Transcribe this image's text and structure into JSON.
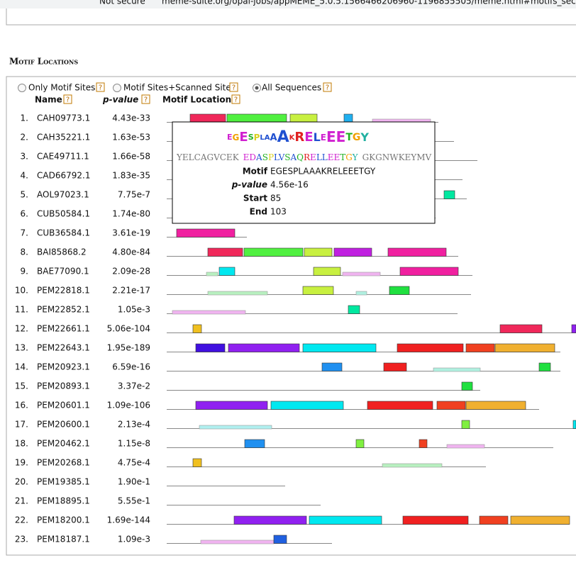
{
  "browser": {
    "security": "Not secure",
    "url": "meme-suite.org/opal-jobs/appMEME_5.0.5.1566466206960-1196855505/meme.html#motifs_sec"
  },
  "section": {
    "title": "Motif Locations",
    "options": [
      "Only Motif Sites",
      "Motif Sites+Scanned Sites",
      "All Sequences"
    ],
    "help": "?",
    "columns": {
      "name": "Name",
      "pvalue": "p-value",
      "location": "Motif Location"
    },
    "rows": [
      [
        "1.",
        "CAH09773.1",
        "4.43e-33"
      ],
      [
        "2.",
        "CAH35221.1",
        "1.63e-53"
      ],
      [
        "3.",
        "CAE49711.1",
        "1.66e-58"
      ],
      [
        "4.",
        "CAD66792.1",
        "1.83e-35"
      ],
      [
        "5.",
        "AOL97023.1",
        "7.75e-7"
      ],
      [
        "6.",
        "CUB50584.1",
        "1.74e-80"
      ],
      [
        "7.",
        "CUB36584.1",
        "3.61e-19"
      ],
      [
        "8.",
        "BAI85868.2",
        "4.80e-84"
      ],
      [
        "9.",
        "BAE77090.1",
        "2.09e-28"
      ],
      [
        "10.",
        "PEM22818.1",
        "2.21e-17"
      ],
      [
        "11.",
        "PEM22852.1",
        "1.05e-3"
      ],
      [
        "12.",
        "PEM22661.1",
        "5.06e-104"
      ],
      [
        "13.",
        "PEM22643.1",
        "1.95e-189"
      ],
      [
        "14.",
        "PEM20923.1",
        "6.59e-16"
      ],
      [
        "15.",
        "PEM20893.1",
        "3.37e-2"
      ],
      [
        "16.",
        "PEM20601.1",
        "1.09e-106"
      ],
      [
        "17.",
        "PEM20600.1",
        "2.13e-4"
      ],
      [
        "18.",
        "PEM20462.1",
        "1.15e-8"
      ],
      [
        "19.",
        "PEM20268.1",
        "4.75e-4"
      ],
      [
        "20.",
        "PEM19385.1",
        "1.90e-1"
      ],
      [
        "21.",
        "PEM18895.1",
        "5.55e-1"
      ],
      [
        "22.",
        "PEM18200.1",
        "1.69e-144"
      ],
      [
        "23.",
        "PEM18187.1",
        "1.09e-3"
      ]
    ]
  },
  "tooltip": {
    "seq_before": "YELCAGVCEK",
    "seq_motif": "EDASPLVSAQRELLEETGY",
    "seq_after": "GKGNWKEYMV",
    "motif_label": "Motif",
    "motif": "EGESPLAAAKRELEEETGY",
    "pvalue_label": "p-value",
    "pvalue": "4.56e-16",
    "start_label": "Start",
    "start": "85",
    "end_label": "End",
    "end": "103"
  }
}
